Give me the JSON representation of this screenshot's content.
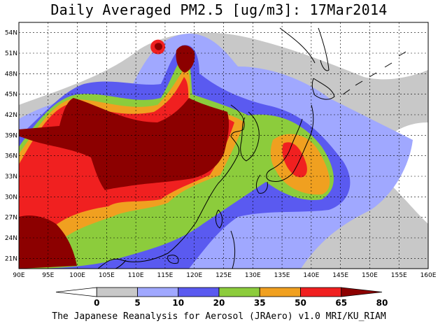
{
  "title": "Daily Averaged PM2.5 [ug/m3]: 17Mar2014",
  "footer": "The Japanese Reanalysis for Aerosol (JRAero) v1.0 MRI/KU_RIAM",
  "lat_labels": [
    "54N",
    "51N",
    "48N",
    "45N",
    "42N",
    "39N",
    "36N",
    "33N",
    "30N",
    "27N",
    "24N",
    "21N"
  ],
  "lon_labels": [
    "90E",
    "95E",
    "100E",
    "105E",
    "110E",
    "115E",
    "120E",
    "125E",
    "130E",
    "135E",
    "140E",
    "145E",
    "150E",
    "155E",
    "160E"
  ],
  "colorbar": {
    "labels": [
      "0",
      "5",
      "10",
      "20",
      "35",
      "50",
      "65",
      "80"
    ],
    "colors": [
      "#ffffff",
      "#c8c8c8",
      "#a0a8ff",
      "#5a5af0",
      "#8ccc3c",
      "#f0a020",
      "#f02020",
      "#8c0000"
    ]
  },
  "palette": {
    "grey": "#c8c8c8",
    "lightblue": "#a0a8ff",
    "blue": "#5a5af0",
    "green": "#8ccc3c",
    "orange": "#f0a020",
    "red": "#f02020",
    "darkred": "#8c0000"
  }
}
